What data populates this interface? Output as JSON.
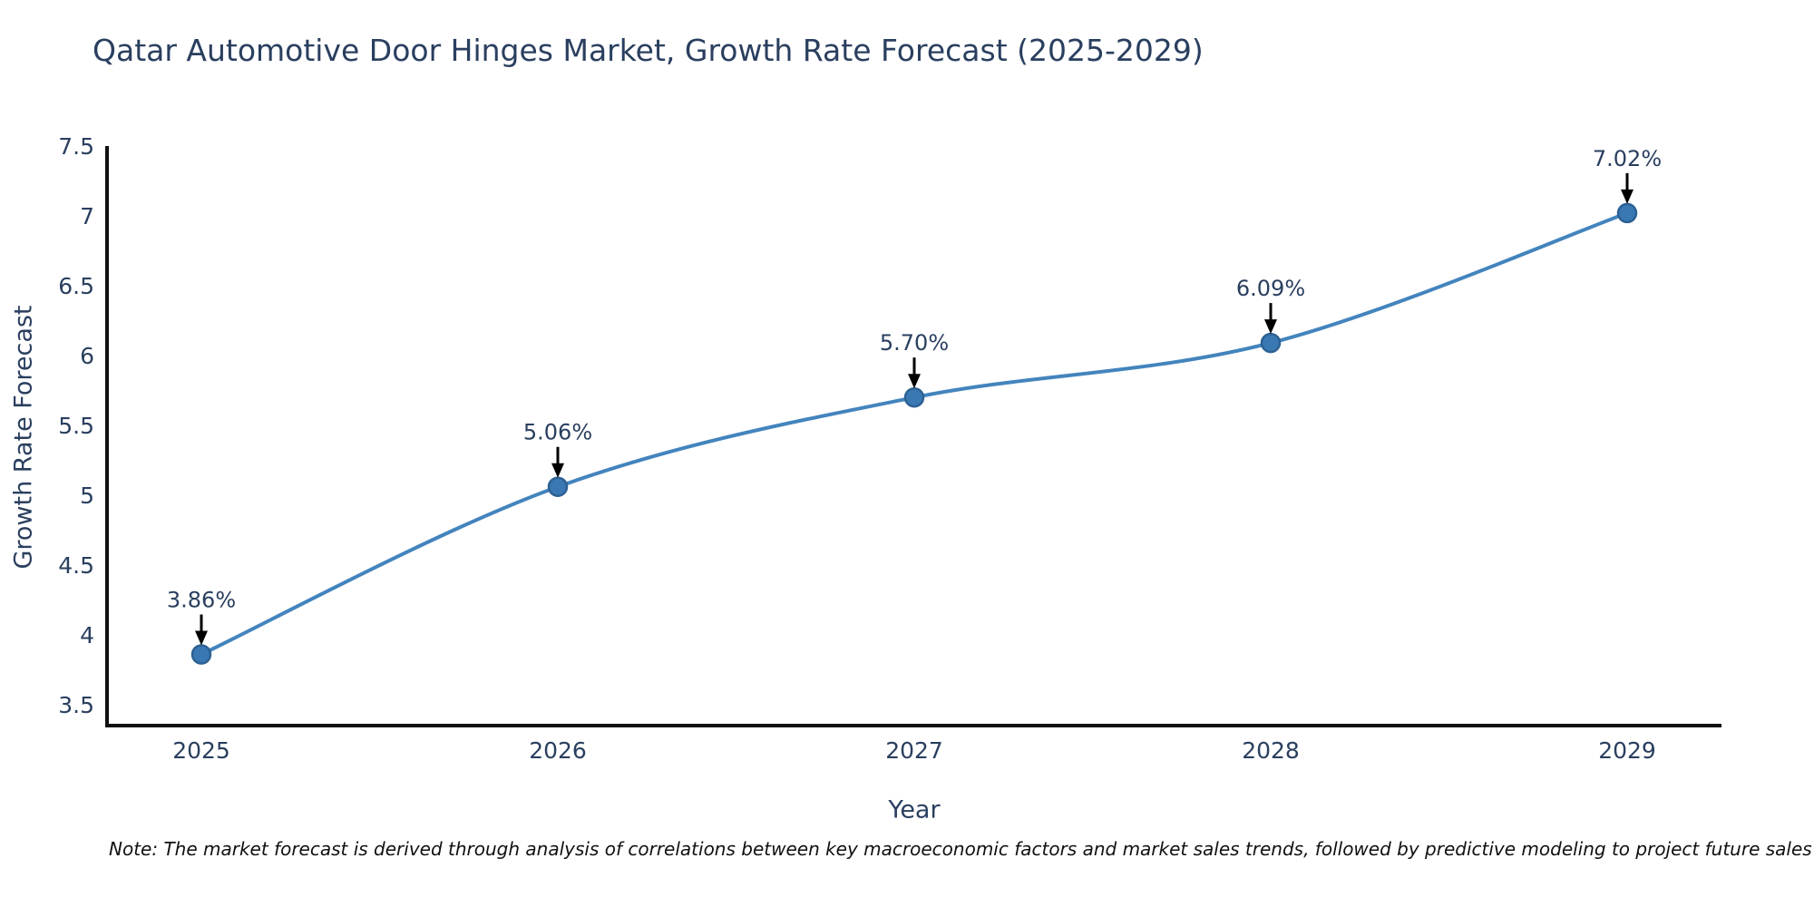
{
  "note": "Note: The market forecast is derived through analysis of correlations between key macroeconomic factors and market sales trends, followed by predictive modeling to project future sales",
  "chart_data": {
    "type": "line",
    "title": "Qatar Automotive Door Hinges Market, Growth Rate Forecast (2025-2029)",
    "xlabel": "Year",
    "ylabel": "Growth Rate Forecast",
    "categories": [
      "2025",
      "2026",
      "2027",
      "2028",
      "2029"
    ],
    "values": [
      3.86,
      5.06,
      5.7,
      6.09,
      7.02
    ],
    "point_labels": [
      "3.86%",
      "5.06%",
      "5.70%",
      "6.09%",
      "7.02%"
    ],
    "ylim": [
      3.35,
      7.5
    ],
    "yticks": [
      3.5,
      4,
      4.5,
      5,
      5.5,
      6,
      6.5,
      7,
      7.5
    ],
    "ytick_labels": [
      "3.5",
      "4",
      "4.5",
      "5",
      "5.5",
      "6",
      "6.5",
      "7",
      "7.5"
    ],
    "grid": false,
    "legend": "none",
    "line_shape": "spline",
    "colors": {
      "line": "#4384bd",
      "marker_fill": "#3a78b3",
      "marker_stroke": "#2d6194",
      "axis": "#111111",
      "text": "#2a3f5f",
      "annotation_text": "#2a3f5f",
      "annotation_arrow": "#000000"
    }
  }
}
